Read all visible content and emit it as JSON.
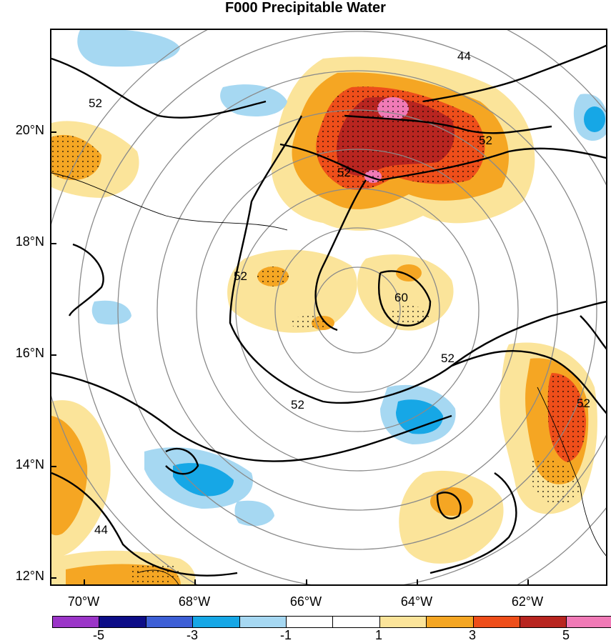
{
  "title": "F000 Precipitable Water",
  "y_axis_labels": [
    "20°N",
    "18°N",
    "16°N",
    "14°N",
    "12°N"
  ],
  "x_axis_labels": [
    "70°W",
    "68°W",
    "66°W",
    "64°W",
    "62°W"
  ],
  "contour_labels": [
    "52",
    "52",
    "52",
    "52",
    "44",
    "44",
    "60",
    "52",
    "52",
    "52"
  ],
  "colorbar": {
    "labels": [
      "-5",
      "-3",
      "-1",
      "1",
      "3",
      "5"
    ],
    "colors": [
      "#9b35c8",
      "#0d0d87",
      "#3d5fd6",
      "#16a7e6",
      "#a6d8f2",
      "#ffffff",
      "#ffffff",
      "#fbe49a",
      "#f5a623",
      "#ee4e1a",
      "#b82520",
      "#f07ab6"
    ]
  },
  "map_colors": {
    "contour": "#000000",
    "range_rings": "#8a8a8a",
    "positive_light": "#fbe49a",
    "positive_mid": "#f5a623",
    "positive_strong": "#ee4e1a",
    "positive_dark": "#b82520",
    "positive_max": "#f07ab6",
    "negative_light": "#a6d8f2",
    "negative_mid": "#16a7e6"
  }
}
